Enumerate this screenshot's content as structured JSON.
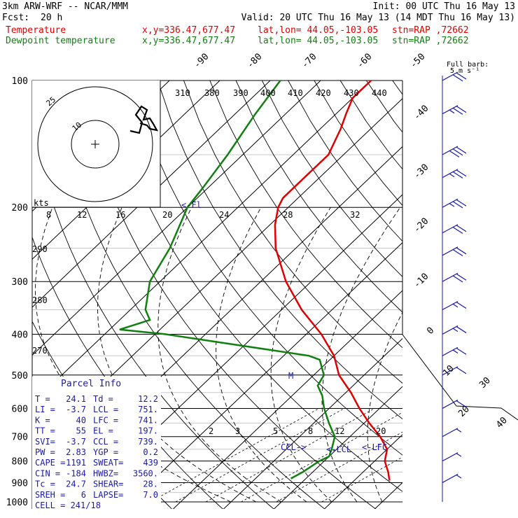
{
  "header": {
    "model": "3km ARW-WRF -- NCAR/MMM",
    "init": "Init: 00 UTC Thu 16 May 13",
    "fcst_label": "Fcst:",
    "fcst_value": "20 h",
    "valid": "Valid: 20 UTC Thu 16 May 13 (14 MDT Thu 16 May 13)",
    "series": [
      {
        "name": "Temperature",
        "xy": "x,y=336.47,677.47",
        "latlon": "lat,lon= 44.05,-103.05",
        "stn": "stn=RAP ,72662"
      },
      {
        "name": "Dewpoint temperature",
        "xy": "x,y=336.47,677.47",
        "latlon": "lat,lon= 44.05,-103.05",
        "stn": "stn=RAP ,72662"
      }
    ]
  },
  "colors": {
    "temperature": "#e00000",
    "dewpoint": "#108010",
    "grid": "#000000",
    "barb": "#1a1aa8"
  },
  "chart_data": {
    "type": "line",
    "title": "Skew-T log-P sounding",
    "pressure_levels": [
      100,
      200,
      300,
      400,
      500,
      600,
      700,
      800,
      900,
      1000
    ],
    "isotherm_labels": [
      "-90",
      "-80",
      "-70",
      "-60",
      "-50",
      "-40",
      "-30",
      "-20",
      "-10",
      "0",
      "10",
      "20",
      "30",
      "40"
    ],
    "theta_e_labels": [
      "310",
      "380",
      "390",
      "400",
      "410",
      "420",
      "430",
      "440"
    ],
    "hodograph_ticks": [
      "8",
      "12",
      "16",
      "20",
      "24",
      "28",
      "32"
    ],
    "hodograph_label": "kts",
    "mixing_ratio_labels": [
      "2",
      "3",
      "5",
      "8",
      "12",
      "20"
    ],
    "dry_adiabat_labels": [
      "290",
      "280",
      "270"
    ],
    "annotations": {
      "fl": "<-Fl",
      "m": "M",
      "ccl": "CCL->",
      "lcl": "<-LCL",
      "lfc": "<-LFC"
    },
    "full_barb_label": [
      "Full barb:",
      "5 m s⁻¹"
    ],
    "hodo_rings": [
      "10",
      "25"
    ],
    "series": [
      {
        "name": "Temperature",
        "points": [
          [
            100,
            -60
          ],
          [
            110,
            -60
          ],
          [
            120,
            -58
          ],
          [
            130,
            -56
          ],
          [
            150,
            -53
          ],
          [
            170,
            -53
          ],
          [
            180,
            -53
          ],
          [
            190,
            -53
          ],
          [
            200,
            -52
          ],
          [
            220,
            -49
          ],
          [
            250,
            -44
          ],
          [
            300,
            -35
          ],
          [
            350,
            -26
          ],
          [
            400,
            -17
          ],
          [
            450,
            -10
          ],
          [
            500,
            -5
          ],
          [
            550,
            1
          ],
          [
            600,
            6
          ],
          [
            650,
            11
          ],
          [
            700,
            16
          ],
          [
            750,
            20
          ],
          [
            800,
            22
          ],
          [
            850,
            25
          ],
          [
            890,
            27
          ]
        ]
      },
      {
        "name": "Dewpoint temperature",
        "points": [
          [
            100,
            -78
          ],
          [
            120,
            -76
          ],
          [
            150,
            -73
          ],
          [
            180,
            -71
          ],
          [
            200,
            -70
          ],
          [
            250,
            -65
          ],
          [
            300,
            -62
          ],
          [
            350,
            -57
          ],
          [
            370,
            -54
          ],
          [
            390,
            -58
          ],
          [
            400,
            -48
          ],
          [
            450,
            -15
          ],
          [
            460,
            -12
          ],
          [
            500,
            -8
          ],
          [
            530,
            -7
          ],
          [
            560,
            -4
          ],
          [
            600,
            -1
          ],
          [
            650,
            3
          ],
          [
            700,
            7
          ],
          [
            750,
            9
          ],
          [
            780,
            10
          ],
          [
            800,
            9
          ],
          [
            850,
            8
          ],
          [
            880,
            7
          ]
        ]
      }
    ],
    "wind_barbs_kt": [
      {
        "p": 100,
        "spd": 20
      },
      {
        "p": 120,
        "spd": 25
      },
      {
        "p": 150,
        "spd": 30
      },
      {
        "p": 170,
        "spd": 25
      },
      {
        "p": 200,
        "spd": 25
      },
      {
        "p": 230,
        "spd": 20
      },
      {
        "p": 260,
        "spd": 20
      },
      {
        "p": 300,
        "spd": 20
      },
      {
        "p": 350,
        "spd": 15
      },
      {
        "p": 400,
        "spd": 15
      },
      {
        "p": 450,
        "spd": 15
      },
      {
        "p": 500,
        "spd": 10
      },
      {
        "p": 600,
        "spd": 10
      },
      {
        "p": 700,
        "spd": 5
      },
      {
        "p": 800,
        "spd": 5
      },
      {
        "p": 900,
        "spd": 5
      }
    ]
  },
  "parcel": {
    "title": "Parcel Info",
    "rows": [
      [
        "T  =",
        "24.1",
        "Td =",
        "12.2"
      ],
      [
        "LI =",
        "-3.7",
        "LCL =",
        "751."
      ],
      [
        "K  =",
        "40",
        "LFC =",
        "741."
      ],
      [
        "TT =",
        "55",
        "EL  =",
        "197."
      ],
      [
        "SVI=",
        "-3.7",
        "CCL =",
        "739."
      ],
      [
        "PW =",
        "2.83",
        "YGP =",
        "0.2"
      ],
      [
        "CAPE =",
        "1191",
        "SWEAT=",
        "439"
      ],
      [
        "CIN =",
        "-184",
        "HWBZ=",
        "3560."
      ],
      [
        "Tc =",
        "24.7",
        "SHEAR=",
        "28."
      ],
      [
        "SREH =",
        "6",
        "LAPSE=",
        "7.0"
      ]
    ],
    "cell": "CELL = 241/18"
  }
}
